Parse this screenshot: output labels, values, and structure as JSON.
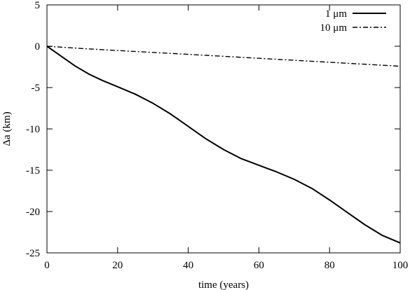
{
  "chart_data": {
    "type": "line",
    "title": "",
    "xlabel": "time (years)",
    "ylabel": "Δa (km)",
    "xlim": [
      0,
      100
    ],
    "ylim": [
      -25,
      5
    ],
    "x_ticks": [
      0,
      20,
      40,
      60,
      80,
      100
    ],
    "y_ticks": [
      5,
      0,
      -5,
      -10,
      -15,
      -20,
      -25
    ],
    "grid": false,
    "legend_position": "top-right",
    "series": [
      {
        "name": "1 μm",
        "style": "solid",
        "color": "#000000",
        "x": [
          0,
          2,
          5,
          8,
          12,
          16,
          20,
          25,
          30,
          35,
          40,
          45,
          50,
          55,
          60,
          65,
          70,
          75,
          80,
          85,
          90,
          95,
          100
        ],
        "y": [
          0,
          -0.6,
          -1.5,
          -2.4,
          -3.4,
          -4.2,
          -4.9,
          -5.8,
          -6.9,
          -8.2,
          -9.7,
          -11.2,
          -12.5,
          -13.6,
          -14.4,
          -15.2,
          -16.1,
          -17.2,
          -18.6,
          -20.1,
          -21.6,
          -22.9,
          -23.8
        ]
      },
      {
        "name": "10 μm",
        "style": "dash-dot",
        "color": "#000000",
        "x": [
          0,
          10,
          20,
          30,
          40,
          50,
          60,
          70,
          80,
          90,
          100
        ],
        "y": [
          0,
          -0.28,
          -0.52,
          -0.75,
          -0.98,
          -1.22,
          -1.46,
          -1.7,
          -1.94,
          -2.18,
          -2.42
        ]
      }
    ]
  }
}
